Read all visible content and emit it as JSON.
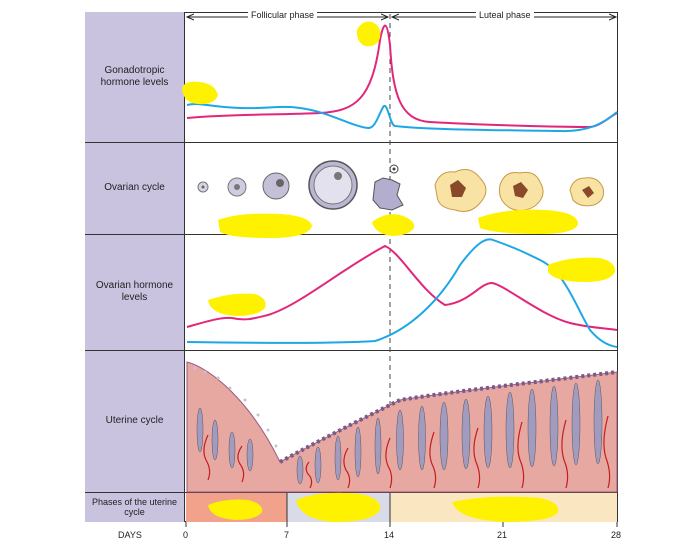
{
  "header": {
    "follicular_phase": "Follicular phase",
    "luteal_phase": "Luteal phase"
  },
  "rows": {
    "gonadotropic": "Gonadotropic hormone levels",
    "ovarian_cycle": "Ovarian cycle",
    "ovarian_hormone": "Ovarian hormone levels",
    "uterine_cycle": "Uterine cycle",
    "uterine_phases": "Phases of the uterine cycle"
  },
  "axis": {
    "label": "DAYS",
    "ticks": [
      "0",
      "7",
      "14",
      "21",
      "28"
    ]
  },
  "colors": {
    "label_bg": "#c9c3e0",
    "pink_line": "#e2267a",
    "blue_line": "#1ea7e6",
    "menstrual": "#f2a18a",
    "proliferative": "#d9dbe8",
    "secretory": "#fbe6c2",
    "highlight": "#fff200"
  }
}
